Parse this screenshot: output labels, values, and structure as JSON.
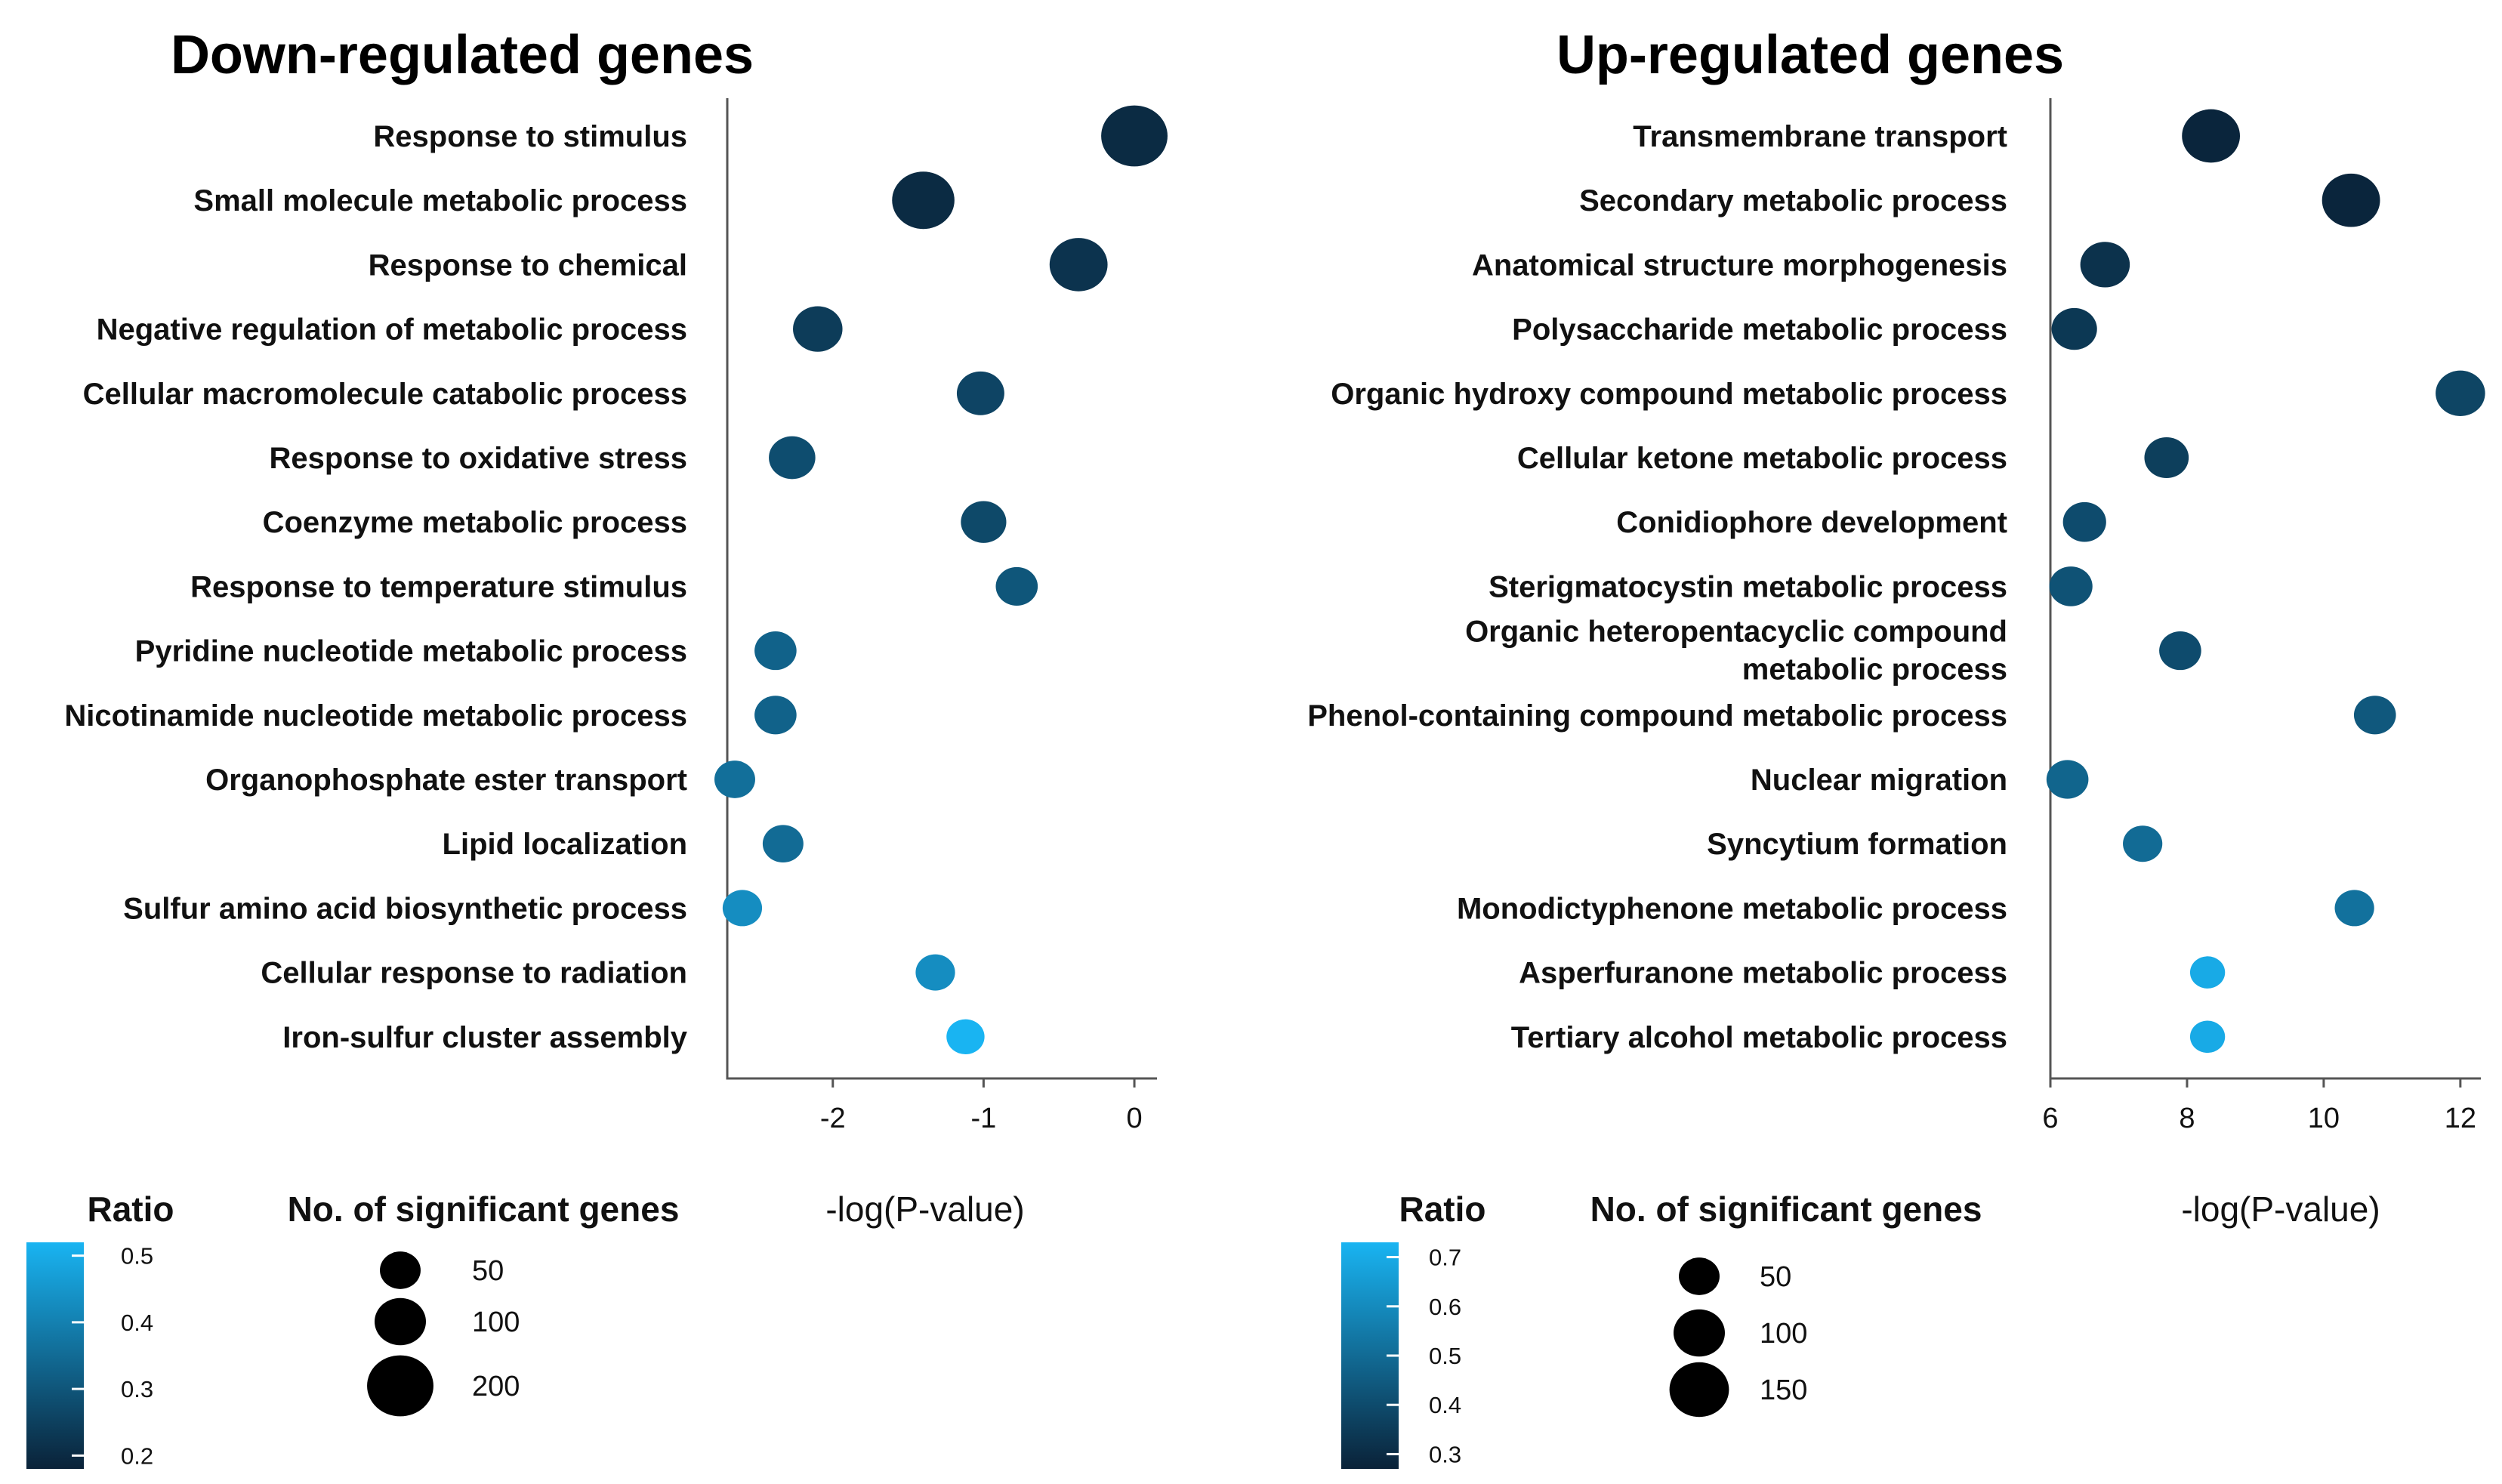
{
  "colors": {
    "ratio_low": "#0a2238",
    "ratio_high": "#19b4f2",
    "axis": "#555555"
  },
  "chart_data": [
    {
      "type": "scatter",
      "title": "Down-regulated genes",
      "xlabel": "-log(P-value)",
      "xticks": [
        -2,
        -1,
        0
      ],
      "xlim": [
        -2.7,
        0.15
      ],
      "categories": [
        "Response to stimulus",
        "Small molecule metabolic process",
        "Response to chemical",
        "Negative regulation of metabolic process",
        "Cellular macromolecule catabolic process",
        "Response to oxidative stress",
        "Coenzyme metabolic process",
        "Response to temperature stimulus",
        "Pyridine nucleotide metabolic process",
        "Nicotinamide nucleotide metabolic process",
        "Organophosphate ester transport",
        "Lipid localization",
        "Sulfur amino acid biosynthetic process",
        "Cellular response to radiation",
        "Iron-sulfur cluster assembly"
      ],
      "x": [
        0.0,
        -1.4,
        -0.37,
        -2.1,
        -1.02,
        -2.27,
        -1.0,
        -0.78,
        -2.38,
        -2.38,
        -2.65,
        -2.33,
        -2.6,
        -1.32,
        -1.12
      ],
      "genes": [
        200,
        170,
        140,
        90,
        80,
        75,
        70,
        55,
        55,
        55,
        50,
        50,
        45,
        45,
        40
      ],
      "ratio": [
        0.2,
        0.2,
        0.22,
        0.24,
        0.26,
        0.28,
        0.27,
        0.3,
        0.33,
        0.33,
        0.36,
        0.35,
        0.43,
        0.43,
        0.52
      ],
      "legend_ratio": {
        "title": "Ratio",
        "range": [
          0.18,
          0.52
        ],
        "ticks": [
          0.5,
          0.4,
          0.3,
          0.2
        ],
        "tick_labels": [
          "0.5",
          "0.4",
          "0.3",
          "0.2"
        ]
      },
      "legend_size": {
        "title": "No. of significant genes",
        "values": [
          50,
          100,
          200
        ],
        "labels": [
          "50",
          "100",
          "200"
        ]
      }
    },
    {
      "type": "scatter",
      "title": "Up-regulated genes",
      "xlabel": "-log(P-value)",
      "xticks": [
        6,
        8,
        10,
        12
      ],
      "xlim": [
        6,
        12.3
      ],
      "categories": [
        "Transmembrane transport",
        "Secondary metabolic process",
        "Anatomical structure morphogenesis",
        "Polysaccharide metabolic process",
        "Organic hydroxy compound metabolic process",
        "Cellular ketone metabolic process",
        "Conidiophore development",
        "Sterigmatocystin metabolic process",
        "Organic heteropentacyclic compound metabolic process",
        "Phenol-containing compound metabolic process",
        "Nuclear migration",
        "Syncytium formation",
        "Monodictyphenone metabolic process",
        "Asperfuranone metabolic process",
        "Tertiary alcohol metabolic process"
      ],
      "category_lines": [
        [
          "Transmembrane transport"
        ],
        [
          "Secondary metabolic process"
        ],
        [
          "Anatomical structure morphogenesis"
        ],
        [
          "Polysaccharide metabolic process"
        ],
        [
          "Organic hydroxy compound metabolic process"
        ],
        [
          "Cellular ketone metabolic process"
        ],
        [
          "Conidiophore development"
        ],
        [
          "Sterigmatocystin metabolic process"
        ],
        [
          "Organic heteropentacyclic compound",
          "metabolic process"
        ],
        [
          "Phenol-containing compound metabolic process"
        ],
        [
          "Nuclear migration"
        ],
        [
          "Syncytium formation"
        ],
        [
          "Monodictyphenone metabolic process"
        ],
        [
          "Asperfuranone metabolic process"
        ],
        [
          "Tertiary alcohol metabolic process"
        ]
      ],
      "x": [
        8.35,
        10.4,
        6.8,
        6.35,
        12.0,
        7.7,
        6.5,
        6.3,
        7.9,
        10.75,
        6.25,
        7.35,
        10.45,
        8.3,
        8.3
      ],
      "genes": [
        140,
        140,
        90,
        70,
        90,
        65,
        60,
        60,
        55,
        55,
        55,
        45,
        45,
        30,
        30
      ],
      "ratio": [
        0.28,
        0.28,
        0.32,
        0.34,
        0.38,
        0.36,
        0.4,
        0.42,
        0.4,
        0.44,
        0.48,
        0.5,
        0.52,
        0.7,
        0.7
      ],
      "legend_ratio": {
        "title": "Ratio",
        "range": [
          0.27,
          0.73
        ],
        "ticks": [
          0.7,
          0.6,
          0.5,
          0.4,
          0.3
        ],
        "tick_labels": [
          "0.7",
          "0.6",
          "0.5",
          "0.4",
          "0.3"
        ]
      },
      "legend_size": {
        "title": "No. of significant genes",
        "values": [
          50,
          100,
          150
        ],
        "labels": [
          "50",
          "100",
          "150"
        ]
      }
    }
  ]
}
